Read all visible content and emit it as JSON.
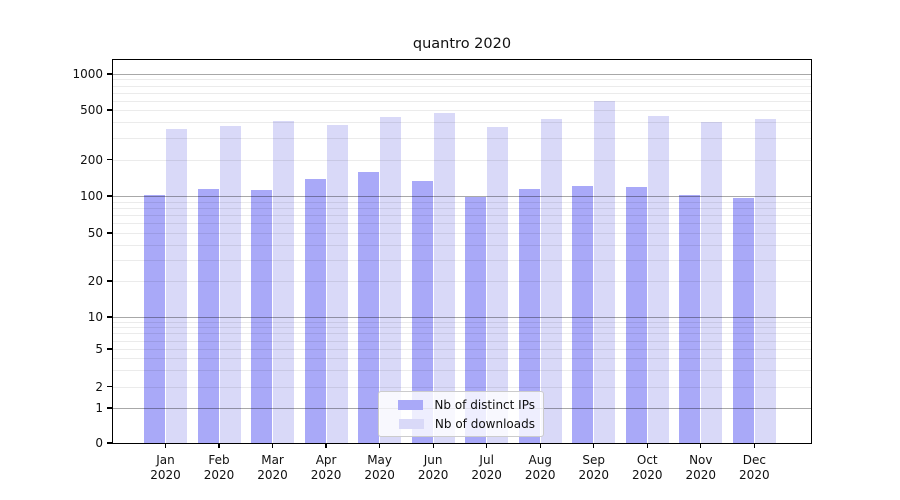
{
  "chart_data": {
    "type": "bar",
    "title": "quantro 2020",
    "categories": [
      "Jan",
      "Feb",
      "Mar",
      "Apr",
      "May",
      "Jun",
      "Jul",
      "Aug",
      "Sep",
      "Oct",
      "Nov",
      "Dec"
    ],
    "year_label": "2020",
    "series": [
      {
        "name": "Nb of distinct IPs",
        "color": "#a9a9f8",
        "values": [
          101,
          114,
          113,
          138,
          157,
          132,
          99,
          114,
          122,
          118,
          102,
          97
        ]
      },
      {
        "name": "Nb of downloads",
        "color": "#d9d9f8",
        "values": [
          350,
          373,
          405,
          380,
          440,
          475,
          368,
          426,
          590,
          450,
          404,
          420
        ]
      }
    ],
    "xlabel": "",
    "ylabel": "",
    "y_scale": "log-like (0, then logarithmic)",
    "y_ticks": [
      0,
      1,
      2,
      5,
      10,
      20,
      50,
      100,
      200,
      500,
      1000
    ],
    "major_gridlines": [
      1,
      10,
      100,
      1000
    ],
    "minor_gridlines": [
      2,
      3,
      4,
      5,
      6,
      7,
      8,
      9,
      20,
      30,
      40,
      50,
      60,
      70,
      80,
      90,
      200,
      300,
      400,
      500,
      600,
      700,
      800,
      900
    ],
    "ylim": [
      0,
      1280
    ],
    "grid": true,
    "legend_position": "lower center"
  },
  "colors": {
    "bar_distinct_ips": "#a9a9f8",
    "bar_downloads": "#d9d9f8",
    "major_grid": "#ababab",
    "minor_grid": "#ececec",
    "axis_frame": "#000000",
    "text": "#111111",
    "legend_border": "#cccccc"
  }
}
